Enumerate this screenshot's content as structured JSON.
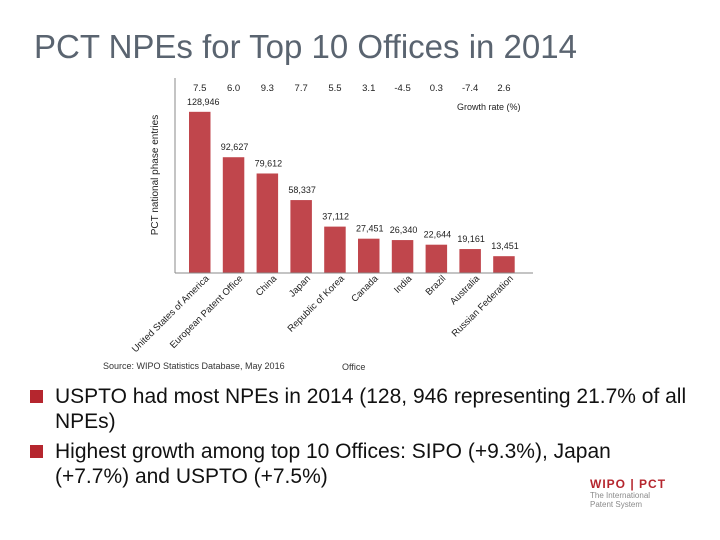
{
  "title": "PCT NPEs for Top 10 Offices in 2014",
  "chart_data": {
    "type": "bar",
    "ylabel": "PCT national phase entries",
    "xlabel": "Office",
    "growth_label": "Growth rate (%)",
    "categories": [
      "United States of America",
      "European Patent Office",
      "China",
      "Japan",
      "Republic of Korea",
      "Canada",
      "India",
      "Brazil",
      "Australia",
      "Russian Federation"
    ],
    "values": [
      128946,
      92627,
      79612,
      58337,
      37112,
      27451,
      26340,
      22644,
      19161,
      13451
    ],
    "value_labels": [
      "128,946",
      "92,627",
      "79,612",
      "58,337",
      "37,112",
      "27,451",
      "26,340",
      "22,644",
      "19,161",
      "13,451"
    ],
    "growth_rates": [
      "7.5",
      "6.0",
      "9.3",
      "7.7",
      "5.5",
      "3.1",
      "-4.5",
      "0.3",
      "-7.4",
      "2.6"
    ],
    "ylim": [
      0,
      140000
    ],
    "bar_color": "#c0464c",
    "source": "Source: WIPO Statistics Database, May 2016"
  },
  "bullets": [
    "USPTO had most NPEs in 2014 (128, 946 representing 21.7% of all NPEs)",
    "Highest growth among top 10 Offices:  SIPO (+9.3%), Japan (+7.7%) and USPTO (+7.5%)"
  ],
  "logo": {
    "brand": "WIPO | PCT",
    "tagline_1": "The International",
    "tagline_2": "Patent System"
  },
  "colors": {
    "accent": "#b5262e",
    "title": "#5a6470"
  }
}
